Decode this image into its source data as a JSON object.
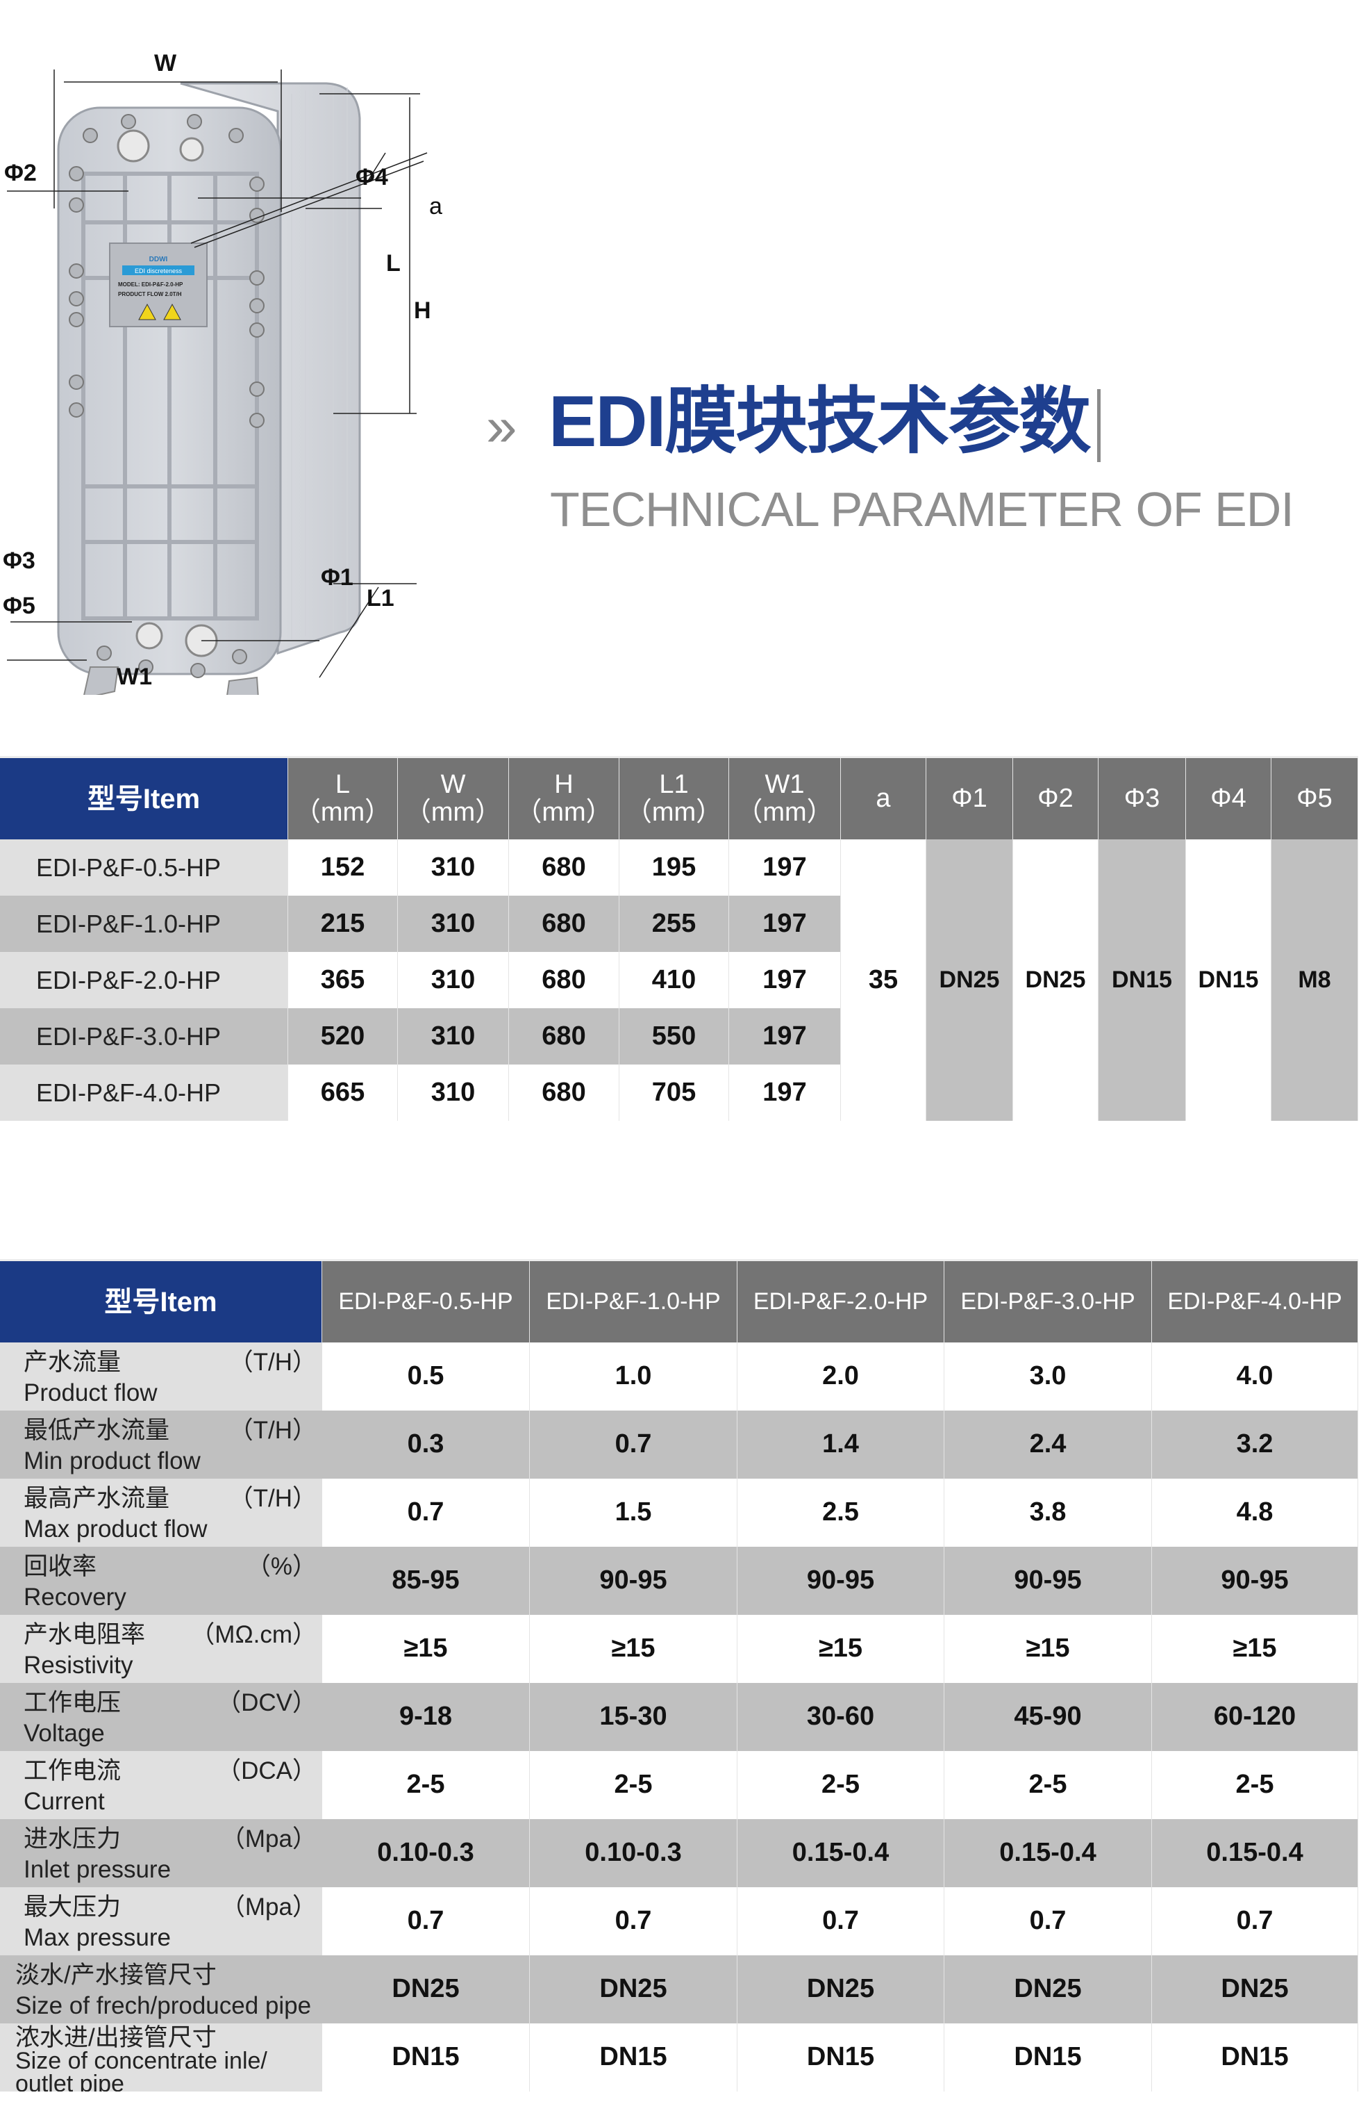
{
  "figure": {
    "dimension_labels": {
      "W": "W",
      "phi2": "Φ2",
      "phi4": "Φ4",
      "a": "a",
      "L": "L",
      "H": "H",
      "phi3": "Φ3",
      "phi5": "Φ5",
      "phi1": "Φ1",
      "L1": "L1",
      "W1": "W1"
    },
    "nameplate": {
      "brand": "DDWI",
      "product": "EDI discreteness",
      "model": "MODEL: EDI-P&F-2.0-HP",
      "flow": "PRODUCT FLOW 2.0T/H"
    }
  },
  "heading": {
    "title": "EDI膜块技术参数",
    "subtitle": "TECHNICAL PARAMETER OF EDI",
    "chevron": "»"
  },
  "colors": {
    "brand_blue": "#1b3a85",
    "header_gray": "#747474",
    "row_gray": "#c0c0c0",
    "label_gray": "#e0e0e0"
  },
  "dimensions_table": {
    "headers": [
      "型号Item",
      "L\n（mm）",
      "W\n（mm）",
      "H\n（mm）",
      "L1\n（mm）",
      "W1\n（mm）",
      "a",
      "Φ1",
      "Φ2",
      "Φ3",
      "Φ4",
      "Φ5"
    ],
    "rows": [
      [
        "EDI-P&F-0.5-HP",
        "152",
        "310",
        "680",
        "195",
        "197"
      ],
      [
        "EDI-P&F-1.0-HP",
        "215",
        "310",
        "680",
        "255",
        "197"
      ],
      [
        "EDI-P&F-2.0-HP",
        "365",
        "310",
        "680",
        "410",
        "197"
      ],
      [
        "EDI-P&F-3.0-HP",
        "520",
        "310",
        "680",
        "550",
        "197"
      ],
      [
        "EDI-P&F-4.0-HP",
        "665",
        "310",
        "680",
        "705",
        "197"
      ]
    ],
    "shared": {
      "a": "35",
      "phi1": "DN25",
      "phi2": "DN25",
      "phi3": "DN15",
      "phi4": "DN15",
      "phi5": "M8"
    }
  },
  "performance_table": {
    "headers": [
      "型号Item",
      "EDI-P&F-0.5-HP",
      "EDI-P&F-1.0-HP",
      "EDI-P&F-2.0-HP",
      "EDI-P&F-3.0-HP",
      "EDI-P&F-4.0-HP"
    ],
    "rows": [
      {
        "cn": "产水流量",
        "en": "Product flow",
        "unit": "（T/H）",
        "values": [
          "0.5",
          "1.0",
          "2.0",
          "3.0",
          "4.0"
        ]
      },
      {
        "cn": "最低产水流量",
        "en": "Min product flow",
        "unit": "（T/H）",
        "values": [
          "0.3",
          "0.7",
          "1.4",
          "2.4",
          "3.2"
        ]
      },
      {
        "cn": "最高产水流量",
        "en": "Max product flow",
        "unit": "（T/H）",
        "values": [
          "0.7",
          "1.5",
          "2.5",
          "3.8",
          "4.8"
        ]
      },
      {
        "cn": "回收率",
        "en": "Recovery",
        "unit": "（%）",
        "values": [
          "85-95",
          "90-95",
          "90-95",
          "90-95",
          "90-95"
        ]
      },
      {
        "cn": "产水电阻率",
        "en": "Resistivity",
        "unit": "（MΩ.cm）",
        "values": [
          "≥15",
          "≥15",
          "≥15",
          "≥15",
          "≥15"
        ]
      },
      {
        "cn": "工作电压",
        "en": "Voltage",
        "unit": "（DCV）",
        "values": [
          "9-18",
          "15-30",
          "30-60",
          "45-90",
          "60-120"
        ]
      },
      {
        "cn": "工作电流",
        "en": "Current",
        "unit": "（DCA）",
        "values": [
          "2-5",
          "2-5",
          "2-5",
          "2-5",
          "2-5"
        ]
      },
      {
        "cn": "进水压力",
        "en": "Inlet pressure",
        "unit": "（Mpa）",
        "values": [
          "0.10-0.3",
          "0.10-0.3",
          "0.15-0.4",
          "0.15-0.4",
          "0.15-0.4"
        ]
      },
      {
        "cn": "最大压力",
        "en": "Max pressure",
        "unit": "（Mpa）",
        "values": [
          "0.7",
          "0.7",
          "0.7",
          "0.7",
          "0.7"
        ]
      },
      {
        "cn": "淡水/产水接管尺寸",
        "en": "Size of frech/produced pipe",
        "unit": "",
        "values": [
          "DN25",
          "DN25",
          "DN25",
          "DN25",
          "DN25"
        ]
      },
      {
        "cn": "浓水进/出接管尺寸",
        "en": "Size of concentrate inle/ outlet pipe",
        "unit": "",
        "values": [
          "DN15",
          "DN15",
          "DN15",
          "DN15",
          "DN15"
        ]
      }
    ]
  }
}
